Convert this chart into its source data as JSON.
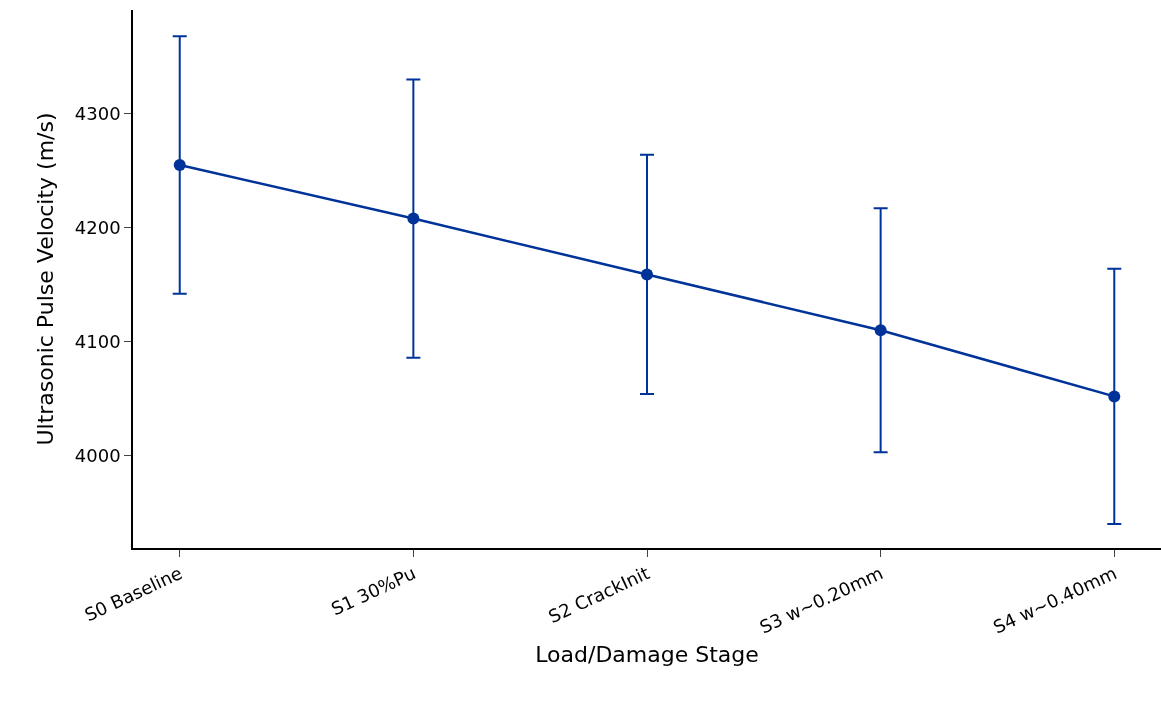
{
  "chart_data": {
    "type": "line",
    "xlabel": "Load/Damage Stage",
    "ylabel": "Ultrasonic Pulse Velocity (m/s)",
    "categories": [
      "S0 Baseline",
      "S1 30%Pu",
      "S2 CrackInit",
      "S3 w~0.20mm",
      "S4 w~0.40mm"
    ],
    "series": [
      {
        "color": "#003399",
        "values": [
          4255,
          4208,
          4159,
          4110,
          4052
        ],
        "errors": [
          113,
          122,
          105,
          107,
          112
        ]
      }
    ],
    "ylim": [
      3919,
      4391
    ],
    "yticks": [
      4000,
      4100,
      4200,
      4300
    ],
    "marker": "circle",
    "line_style": "solid"
  }
}
